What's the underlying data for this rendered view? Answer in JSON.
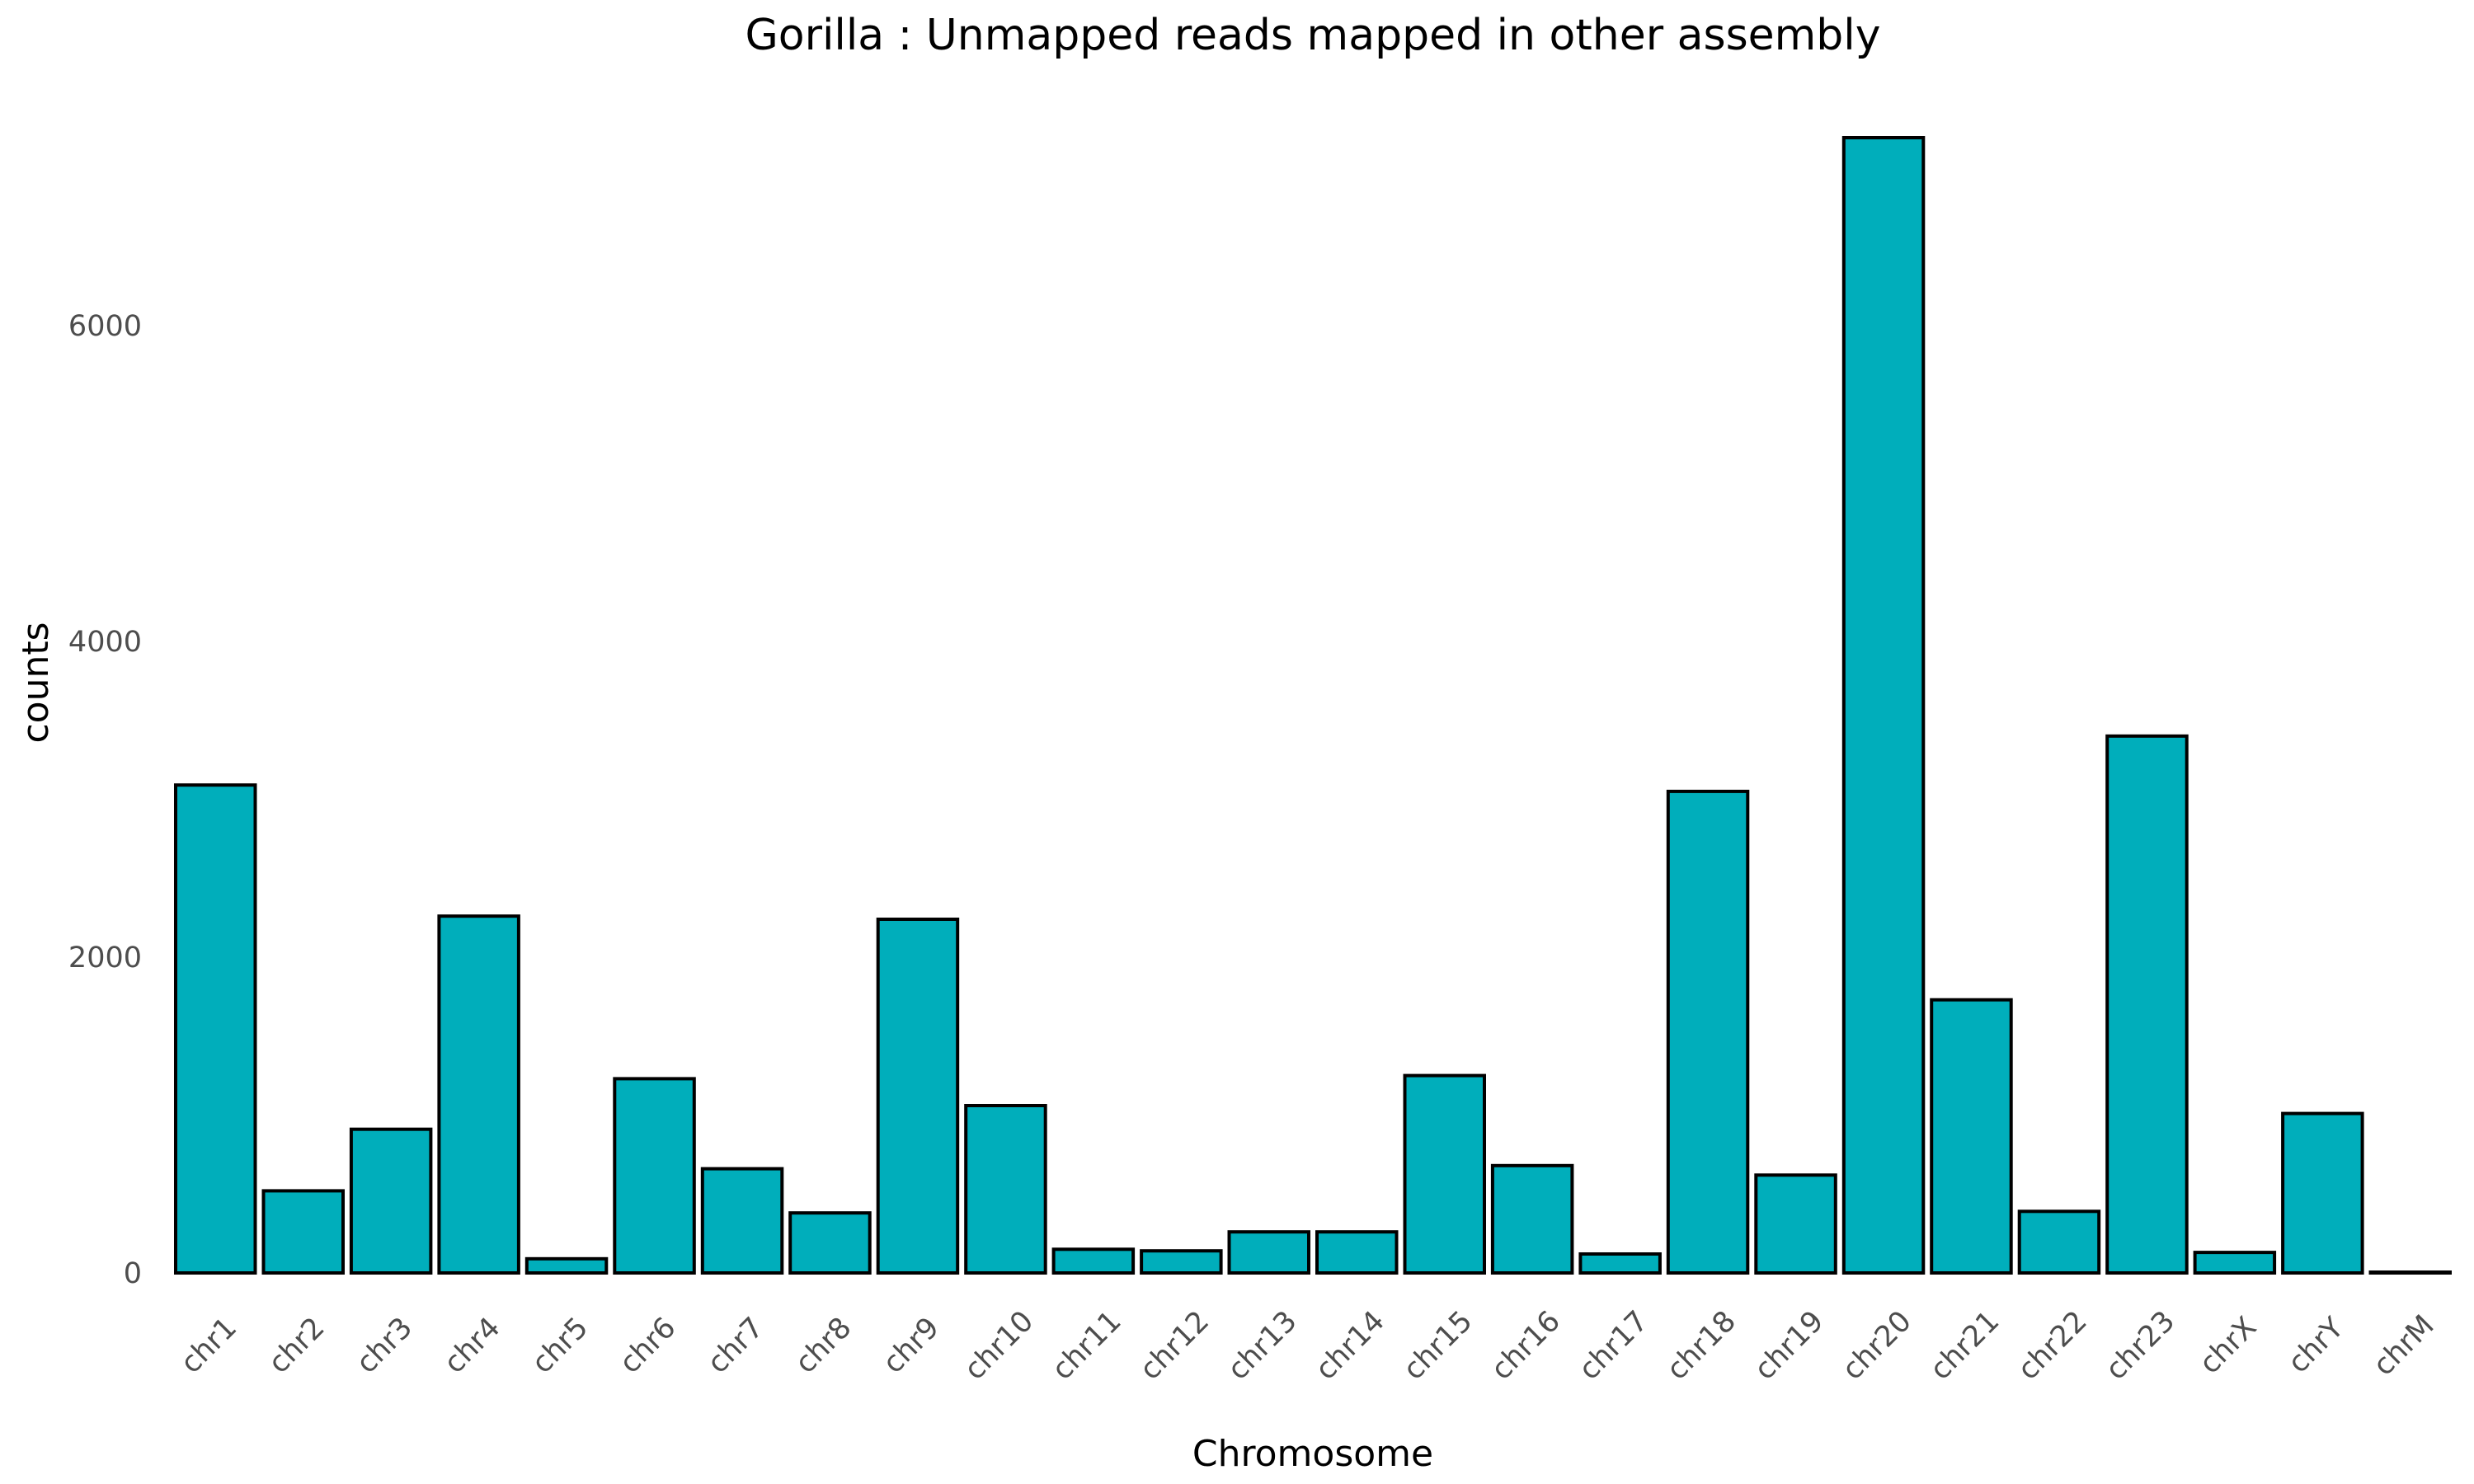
{
  "chart_data": {
    "type": "bar",
    "title": "Gorilla : Unmapped reads mapped in other assembly",
    "xlabel": "Chromosome",
    "ylabel": "counts",
    "categories": [
      "chr1",
      "chr2",
      "chr3",
      "chr4",
      "chr5",
      "chr6",
      "chr7",
      "chr8",
      "chr9",
      "chr10",
      "chr11",
      "chr12",
      "chr13",
      "chr14",
      "chr15",
      "chr16",
      "chr17",
      "chr18",
      "chr19",
      "chr20",
      "chr21",
      "chr22",
      "chr23",
      "chrX",
      "chrY",
      "chrM"
    ],
    "values": [
      3090,
      520,
      910,
      2260,
      90,
      1230,
      660,
      380,
      2240,
      1060,
      150,
      140,
      260,
      260,
      1250,
      680,
      120,
      3050,
      620,
      7190,
      1730,
      390,
      3400,
      130,
      1010,
      5
    ],
    "yticks": [
      0,
      2000,
      4000,
      6000
    ],
    "ylim": [
      0,
      7190
    ],
    "bar_fill": "#00aebb",
    "bar_stroke": "#000000",
    "grid": false,
    "legend": "none"
  }
}
